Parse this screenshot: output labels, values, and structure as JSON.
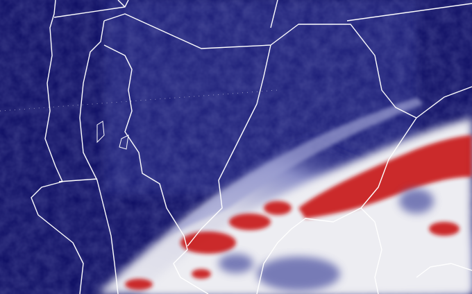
{
  "map": {
    "type": "satellite-enhanced-infrared",
    "colors": {
      "clear_background": "#0c0c62",
      "land_dark": "#101070",
      "cloud_low": "#5a5ea8",
      "cloud_mid": "#b8bad8",
      "cloud_high": "#e8e8ee",
      "cloud_coldest": "#c81818",
      "borders": "#ffffff"
    }
  }
}
